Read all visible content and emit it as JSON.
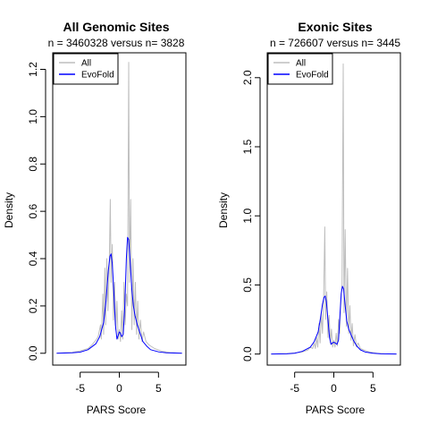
{
  "chart_data": [
    {
      "type": "line",
      "title": "All Genomic Sites",
      "subtitle": "n = 3460328 versus n= 3828",
      "xlabel": "PARS Score",
      "ylabel": "Density",
      "xlim": [
        -8.5,
        8.5
      ],
      "ylim": [
        -0.05,
        1.27
      ],
      "xticks": [
        -5,
        0,
        5
      ],
      "yticks": [
        0.0,
        0.2,
        0.4,
        0.6,
        0.8,
        1.0,
        1.2
      ],
      "ytick_labels": [
        "0.0",
        "0.2",
        "0.4",
        "0.6",
        "0.8",
        "1.0",
        "1.2"
      ],
      "legend_position": "top-left",
      "series": [
        {
          "name": "All",
          "color": "#bebebe",
          "points": [
            [
              -8,
              0.0
            ],
            [
              -6,
              0.004
            ],
            [
              -5,
              0.01
            ],
            [
              -4,
              0.02
            ],
            [
              -3.5,
              0.035
            ],
            [
              -3,
              0.055
            ],
            [
              -2.7,
              0.07
            ],
            [
              -2.4,
              0.12
            ],
            [
              -2.3,
              0.06
            ],
            [
              -2.1,
              0.25
            ],
            [
              -2.0,
              0.08
            ],
            [
              -1.85,
              0.36
            ],
            [
              -1.75,
              0.12
            ],
            [
              -1.6,
              0.4
            ],
            [
              -1.45,
              0.18
            ],
            [
              -1.3,
              0.34
            ],
            [
              -1.15,
              0.65
            ],
            [
              -1.05,
              0.3
            ],
            [
              -0.9,
              0.46
            ],
            [
              -0.75,
              0.14
            ],
            [
              -0.6,
              0.3
            ],
            [
              -0.45,
              0.1
            ],
            [
              -0.3,
              0.22
            ],
            [
              -0.15,
              0.06
            ],
            [
              0.0,
              0.1
            ],
            [
              0.15,
              0.05
            ],
            [
              0.3,
              0.18
            ],
            [
              0.45,
              0.06
            ],
            [
              0.6,
              0.3
            ],
            [
              0.75,
              0.12
            ],
            [
              0.9,
              0.25
            ],
            [
              1.05,
              0.2
            ],
            [
              1.2,
              1.23
            ],
            [
              1.3,
              0.3
            ],
            [
              1.45,
              0.65
            ],
            [
              1.6,
              0.1
            ],
            [
              1.75,
              0.4
            ],
            [
              1.9,
              0.12
            ],
            [
              2.05,
              0.3
            ],
            [
              2.2,
              0.08
            ],
            [
              2.35,
              0.22
            ],
            [
              2.5,
              0.06
            ],
            [
              2.7,
              0.14
            ],
            [
              2.9,
              0.05
            ],
            [
              3.1,
              0.09
            ],
            [
              3.4,
              0.05
            ],
            [
              3.8,
              0.035
            ],
            [
              4.5,
              0.02
            ],
            [
              5.5,
              0.008
            ],
            [
              6.5,
              0.003
            ],
            [
              8,
              0.0
            ]
          ]
        },
        {
          "name": "EvoFold",
          "color": "#0000ff",
          "points": [
            [
              -8,
              0.0
            ],
            [
              -6,
              0.002
            ],
            [
              -5,
              0.005
            ],
            [
              -4,
              0.015
            ],
            [
              -3,
              0.04
            ],
            [
              -2.5,
              0.07
            ],
            [
              -2,
              0.13
            ],
            [
              -1.7,
              0.22
            ],
            [
              -1.4,
              0.35
            ],
            [
              -1.2,
              0.41
            ],
            [
              -1.05,
              0.42
            ],
            [
              -0.9,
              0.38
            ],
            [
              -0.7,
              0.26
            ],
            [
              -0.5,
              0.12
            ],
            [
              -0.3,
              0.06
            ],
            [
              -0.15,
              0.075
            ],
            [
              0.0,
              0.09
            ],
            [
              0.15,
              0.085
            ],
            [
              0.3,
              0.07
            ],
            [
              0.5,
              0.08
            ],
            [
              0.7,
              0.2
            ],
            [
              0.9,
              0.4
            ],
            [
              1.05,
              0.49
            ],
            [
              1.2,
              0.48
            ],
            [
              1.4,
              0.38
            ],
            [
              1.6,
              0.27
            ],
            [
              1.8,
              0.2
            ],
            [
              2.0,
              0.16
            ],
            [
              2.3,
              0.12
            ],
            [
              2.6,
              0.09
            ],
            [
              3,
              0.05
            ],
            [
              3.5,
              0.03
            ],
            [
              4,
              0.015
            ],
            [
              5,
              0.006
            ],
            [
              6,
              0.002
            ],
            [
              8,
              0.0
            ]
          ]
        }
      ]
    },
    {
      "type": "line",
      "title": "Exonic Sites",
      "subtitle": "n = 726607 versus n= 3445",
      "xlabel": "PARS Score",
      "ylabel": "Density",
      "xlim": [
        -8.5,
        8.5
      ],
      "ylim": [
        -0.08,
        2.18
      ],
      "xticks": [
        -5,
        0,
        5
      ],
      "yticks": [
        0.0,
        0.5,
        1.0,
        1.5,
        2.0
      ],
      "ytick_labels": [
        "0.0",
        "0.5",
        "1.0",
        "1.5",
        "2.0"
      ],
      "legend_position": "top-left",
      "series": [
        {
          "name": "All",
          "color": "#bebebe",
          "points": [
            [
              -8,
              0.0
            ],
            [
              -6,
              0.003
            ],
            [
              -5,
              0.008
            ],
            [
              -4,
              0.015
            ],
            [
              -3.3,
              0.03
            ],
            [
              -3,
              0.05
            ],
            [
              -2.7,
              0.04
            ],
            [
              -2.5,
              0.08
            ],
            [
              -2.35,
              0.04
            ],
            [
              -2.2,
              0.12
            ],
            [
              -2.05,
              0.05
            ],
            [
              -1.9,
              0.22
            ],
            [
              -1.75,
              0.08
            ],
            [
              -1.6,
              0.3
            ],
            [
              -1.45,
              0.15
            ],
            [
              -1.3,
              0.4
            ],
            [
              -1.15,
              0.92
            ],
            [
              -1.05,
              0.25
            ],
            [
              -0.9,
              0.45
            ],
            [
              -0.75,
              0.12
            ],
            [
              -0.6,
              0.28
            ],
            [
              -0.45,
              0.08
            ],
            [
              -0.3,
              0.18
            ],
            [
              -0.15,
              0.05
            ],
            [
              0.0,
              0.1
            ],
            [
              0.15,
              0.05
            ],
            [
              0.3,
              0.15
            ],
            [
              0.45,
              0.06
            ],
            [
              0.6,
              0.25
            ],
            [
              0.75,
              0.15
            ],
            [
              0.9,
              0.4
            ],
            [
              1.05,
              0.5
            ],
            [
              1.2,
              2.1
            ],
            [
              1.3,
              0.3
            ],
            [
              1.45,
              0.9
            ],
            [
              1.6,
              0.2
            ],
            [
              1.75,
              0.62
            ],
            [
              1.9,
              0.15
            ],
            [
              2.05,
              0.35
            ],
            [
              2.2,
              0.1
            ],
            [
              2.35,
              0.22
            ],
            [
              2.5,
              0.06
            ],
            [
              2.7,
              0.14
            ],
            [
              2.9,
              0.05
            ],
            [
              3.1,
              0.08
            ],
            [
              3.4,
              0.04
            ],
            [
              3.8,
              0.03
            ],
            [
              4.5,
              0.015
            ],
            [
              5.5,
              0.006
            ],
            [
              6.5,
              0.002
            ],
            [
              8,
              0.0
            ]
          ]
        },
        {
          "name": "EvoFold",
          "color": "#0000ff",
          "points": [
            [
              -8,
              0.0
            ],
            [
              -6,
              0.002
            ],
            [
              -5,
              0.006
            ],
            [
              -4,
              0.02
            ],
            [
              -3,
              0.05
            ],
            [
              -2.5,
              0.09
            ],
            [
              -2,
              0.16
            ],
            [
              -1.7,
              0.26
            ],
            [
              -1.45,
              0.36
            ],
            [
              -1.25,
              0.41
            ],
            [
              -1.1,
              0.42
            ],
            [
              -0.95,
              0.38
            ],
            [
              -0.75,
              0.25
            ],
            [
              -0.55,
              0.12
            ],
            [
              -0.35,
              0.07
            ],
            [
              -0.2,
              0.08
            ],
            [
              0.0,
              0.085
            ],
            [
              0.2,
              0.08
            ],
            [
              0.4,
              0.07
            ],
            [
              0.6,
              0.1
            ],
            [
              0.8,
              0.3
            ],
            [
              0.95,
              0.44
            ],
            [
              1.1,
              0.49
            ],
            [
              1.25,
              0.47
            ],
            [
              1.45,
              0.35
            ],
            [
              1.65,
              0.24
            ],
            [
              1.9,
              0.18
            ],
            [
              2.2,
              0.14
            ],
            [
              2.5,
              0.1
            ],
            [
              2.9,
              0.06
            ],
            [
              3.4,
              0.03
            ],
            [
              4,
              0.015
            ],
            [
              5,
              0.006
            ],
            [
              6,
              0.002
            ],
            [
              8,
              0.0
            ]
          ]
        }
      ]
    }
  ]
}
